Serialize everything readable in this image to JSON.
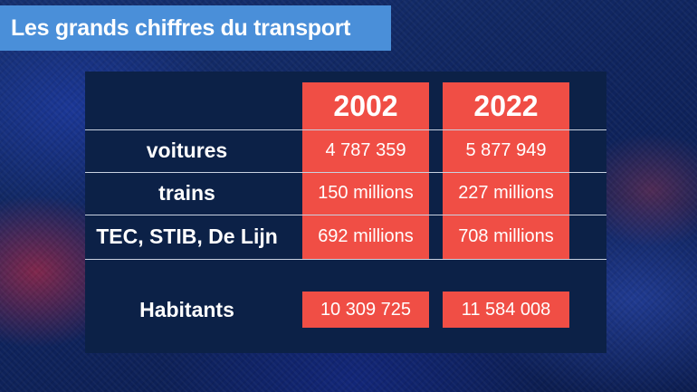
{
  "title": "Les grands chiffres du transport",
  "years": [
    "2002",
    "2022"
  ],
  "rows": [
    {
      "label": "voitures",
      "values": [
        "4 787 359",
        "5 877 949"
      ]
    },
    {
      "label": "trains",
      "values": [
        "150 millions",
        "227 millions"
      ]
    },
    {
      "label": "TEC, STIB, De Lijn",
      "values": [
        "692 millions",
        "708 millions"
      ]
    }
  ],
  "population": {
    "label": "Habitants",
    "values": [
      "10 309 725",
      "11 584 008"
    ]
  },
  "colors": {
    "title_bg": "#4a8fd9",
    "panel_bg": "#0c2147",
    "accent": "#f04e45",
    "text": "#ffffff"
  }
}
